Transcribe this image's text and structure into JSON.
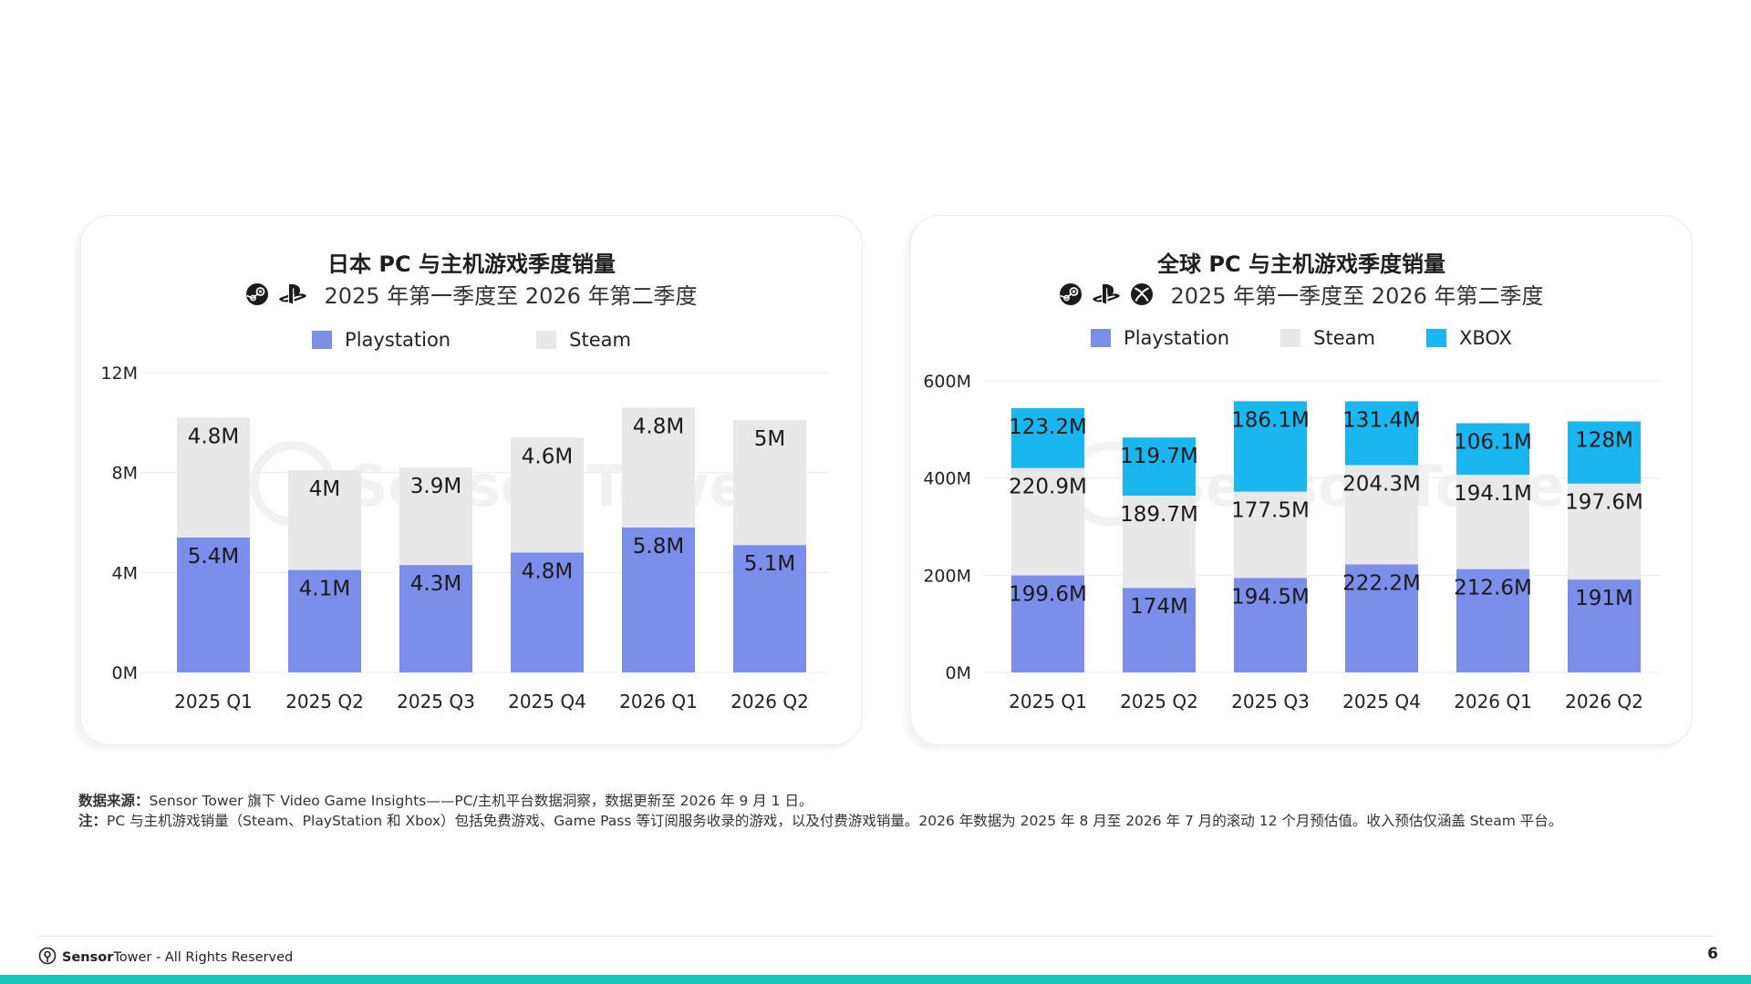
{
  "colors": {
    "playstation": "#7b8ee9",
    "steam": "#e8e8e8",
    "xbox": "#19b6f0",
    "grid": "#ececec",
    "accent": "#17c8b8"
  },
  "left_card": {
    "title": "日本 PC 与主机游戏季度销量",
    "subtitle": "2025 年第一季度至 2026 年第二季度",
    "icons": [
      "steam-icon",
      "playstation-icon"
    ]
  },
  "right_card": {
    "title": "全球 PC 与主机游戏季度销量",
    "subtitle": "2025 年第一季度至 2026 年第二季度",
    "icons": [
      "steam-icon",
      "playstation-icon",
      "xbox-icon"
    ]
  },
  "chart_data": [
    {
      "type": "bar",
      "stacked": true,
      "categories": [
        "2025 Q1",
        "2025 Q2",
        "2025 Q3",
        "2025 Q4",
        "2026 Q1",
        "2026 Q2"
      ],
      "series": [
        {
          "name": "Playstation",
          "color": "#7b8ee9",
          "values": [
            5.4,
            4.1,
            4.3,
            4.8,
            5.8,
            5.1
          ],
          "labels": [
            "5.4M",
            "4.1M",
            "4.3M",
            "4.8M",
            "5.8M",
            "5.1M"
          ]
        },
        {
          "name": "Steam",
          "color": "#e8e8e8",
          "values": [
            4.8,
            4,
            3.9,
            4.6,
            4.8,
            5
          ],
          "labels": [
            "4.8M",
            "4M",
            "3.9M",
            "4.6M",
            "4.8M",
            "5M"
          ]
        }
      ],
      "ylim": [
        0,
        12
      ],
      "yticks": [
        {
          "v": 0,
          "label": "0M"
        },
        {
          "v": 4,
          "label": "4M"
        },
        {
          "v": 8,
          "label": "8M"
        },
        {
          "v": 12,
          "label": "12M"
        }
      ],
      "unit": "M",
      "legend": "top-center",
      "grid": true
    },
    {
      "type": "bar",
      "stacked": true,
      "categories": [
        "2025 Q1",
        "2025 Q2",
        "2025 Q3",
        "2025 Q4",
        "2026 Q1",
        "2026 Q2"
      ],
      "series": [
        {
          "name": "Playstation",
          "color": "#7b8ee9",
          "values": [
            199.6,
            174,
            194.5,
            222.2,
            212.6,
            191
          ],
          "labels": [
            "199.6M",
            "174M",
            "194.5M",
            "222.2M",
            "212.6M",
            "191M"
          ]
        },
        {
          "name": "Steam",
          "color": "#e8e8e8",
          "values": [
            220.9,
            189.7,
            177.5,
            204.3,
            194.1,
            197.6
          ],
          "labels": [
            "220.9M",
            "189.7M",
            "177.5M",
            "204.3M",
            "194.1M",
            "197.6M"
          ]
        },
        {
          "name": "XBOX",
          "color": "#19b6f0",
          "values": [
            123.2,
            119.7,
            186.1,
            131.4,
            106.1,
            128
          ],
          "labels": [
            "123.2M",
            "119.7M",
            "186.1M",
            "131.4M",
            "106.1M",
            "128M"
          ]
        }
      ],
      "ylim": [
        0,
        600
      ],
      "yticks": [
        {
          "v": 0,
          "label": "0M"
        },
        {
          "v": 200,
          "label": "200M"
        },
        {
          "v": 400,
          "label": "400M"
        },
        {
          "v": 600,
          "label": "600M"
        }
      ],
      "unit": "M",
      "legend": "top-center",
      "grid": true
    }
  ],
  "footnotes": {
    "source_label": "数据来源：",
    "source_text": "Sensor Tower 旗下 Video Game Insights——PC/主机平台数据洞察，数据更新至 2026 年 9 月 1 日。",
    "note_label": "注：",
    "note_text": "PC 与主机游戏销量（Steam、PlayStation 和 Xbox）包括免费游戏、Game Pass 等订阅服务收录的游戏，以及付费游戏销量。2026 年数据为 2025 年 8 月至 2026 年 7 月的滚动 12 个月预估值。收入预估仅涵盖 Steam 平台。"
  },
  "footer": {
    "brand_bold": "Sensor",
    "brand_regular": "Tower",
    "rights": " - All Rights Reserved",
    "page_number": "6",
    "watermark_text": "Sensor Tower"
  }
}
